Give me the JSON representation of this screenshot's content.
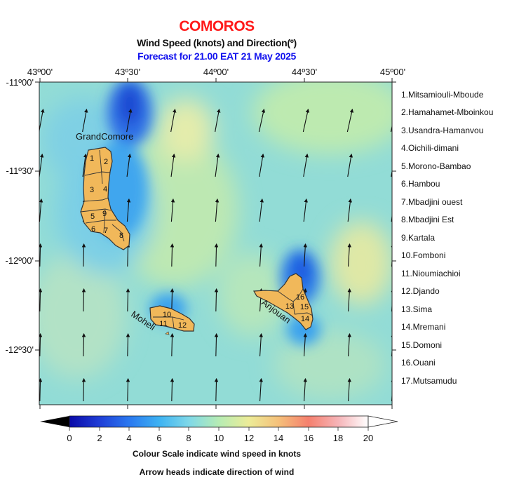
{
  "header": {
    "title": "COMOROS",
    "subtitle": "Wind Speed (knots) and Direction(º)",
    "forecast": "Forecast for  21.00 EAT 21 May 2025"
  },
  "axes": {
    "x_ticks": [
      "43º00'",
      "43º30'",
      "44º00'",
      "44º30'",
      "45º00'"
    ],
    "y_ticks": [
      "-11º00'",
      "-11º30'",
      "-12º00'",
      "-12º30'"
    ],
    "lon_range": [
      43.0,
      45.0
    ],
    "lat_range": [
      -11.0,
      -12.8
    ]
  },
  "islands": {
    "grand_comore": "GrandComore",
    "moheli": "Moheli",
    "anjouan": "Anjouan",
    "fill_color": "#f1b85a",
    "outline_color": "#333333"
  },
  "district_numbers": {
    "grand_comore": [
      "1",
      "2",
      "3",
      "4",
      "5",
      "6",
      "7",
      "8",
      "9"
    ],
    "moheli": [
      "10",
      "11",
      "12"
    ],
    "anjouan": [
      "13",
      "14",
      "15",
      "16"
    ]
  },
  "districts": [
    "1.Mitsamiouli-Mboude",
    "2.Hamahamet-Mboinkou",
    "3.Usandra-Hamanvou",
    "4.Oichili-dimani",
    "5.Morono-Bambao",
    "6.Hambou",
    "7.Mbadjini ouest",
    "8.Mbadjini Est",
    "9.Kartala",
    "10.Fomboni",
    "11.Nioumiachioi",
    "12.Djando",
    "13.Sima",
    "14.Mremani",
    "15.Domoni",
    "16.Ouani",
    "17.Mutsamudu"
  ],
  "colorbar": {
    "ticks": [
      "0",
      "2",
      "4",
      "6",
      "8",
      "10",
      "12",
      "14",
      "16",
      "18",
      "20"
    ],
    "min": 0,
    "max": 20,
    "unit": "knots"
  },
  "captions": {
    "line1": "Colour Scale indicate wind speed in knots",
    "line2": "Arrow heads indicate direction of wind"
  },
  "wind": {
    "prevailing_direction": "southerly",
    "speed_range_knots": [
      2,
      12
    ]
  }
}
